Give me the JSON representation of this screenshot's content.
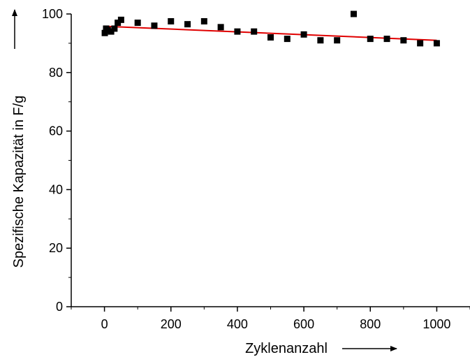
{
  "chart_data": {
    "type": "scatter",
    "title": "",
    "xlabel": "Zyklenanzahl",
    "ylabel": "Spezifische Kapazität in F/g",
    "xlim": [
      -100,
      1100
    ],
    "ylim": [
      0,
      100
    ],
    "xticks": [
      0,
      200,
      400,
      600,
      800,
      1000
    ],
    "yticks": [
      0,
      20,
      40,
      60,
      80,
      100
    ],
    "grid": false,
    "series": [
      {
        "marker": "square",
        "color": "#000000",
        "x": [
          1,
          5,
          10,
          20,
          30,
          40,
          50,
          100,
          150,
          200,
          250,
          300,
          350,
          400,
          450,
          500,
          550,
          600,
          650,
          700,
          750,
          800,
          850,
          900,
          950,
          1000
        ],
        "y": [
          93.5,
          95,
          94.5,
          94,
          95,
          97,
          98,
          97,
          96,
          97.5,
          96.5,
          97.5,
          95.5,
          94,
          94,
          92,
          91.5,
          93,
          91,
          91,
          100,
          91.5,
          91.5,
          91,
          90,
          90
        ]
      }
    ],
    "fit_line": {
      "color": "#e00000",
      "x": [
        0,
        1000
      ],
      "y": [
        95.8,
        91.0
      ]
    }
  }
}
